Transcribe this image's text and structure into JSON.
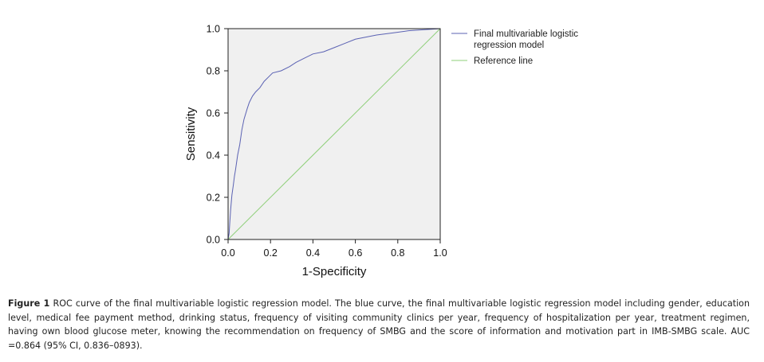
{
  "chart_data": {
    "type": "line",
    "xlabel": "1-Specificity",
    "ylabel": "Sensitivity",
    "xlim": [
      0.0,
      1.0
    ],
    "ylim": [
      0.0,
      1.0
    ],
    "x_ticks": [
      "0.0",
      "0.2",
      "0.4",
      "0.6",
      "0.8",
      "1.0"
    ],
    "y_ticks": [
      "0.0",
      "0.2",
      "0.4",
      "0.6",
      "0.8",
      "1.0"
    ],
    "grid": false,
    "plot_background": "#f0f0f0",
    "legend_position": "right",
    "series": [
      {
        "name": "Final multivariable logistic regression model",
        "color": "#5b62b3",
        "points": [
          [
            0.0,
            0.0
          ],
          [
            0.005,
            0.03
          ],
          [
            0.008,
            0.08
          ],
          [
            0.012,
            0.14
          ],
          [
            0.018,
            0.21
          ],
          [
            0.025,
            0.26
          ],
          [
            0.03,
            0.3
          ],
          [
            0.035,
            0.33
          ],
          [
            0.045,
            0.4
          ],
          [
            0.055,
            0.45
          ],
          [
            0.065,
            0.52
          ],
          [
            0.075,
            0.57
          ],
          [
            0.09,
            0.62
          ],
          [
            0.1,
            0.65
          ],
          [
            0.115,
            0.68
          ],
          [
            0.13,
            0.7
          ],
          [
            0.15,
            0.72
          ],
          [
            0.17,
            0.75
          ],
          [
            0.19,
            0.77
          ],
          [
            0.21,
            0.79
          ],
          [
            0.25,
            0.8
          ],
          [
            0.29,
            0.82
          ],
          [
            0.32,
            0.84
          ],
          [
            0.36,
            0.86
          ],
          [
            0.4,
            0.88
          ],
          [
            0.45,
            0.89
          ],
          [
            0.5,
            0.91
          ],
          [
            0.55,
            0.93
          ],
          [
            0.6,
            0.95
          ],
          [
            0.65,
            0.96
          ],
          [
            0.7,
            0.97
          ],
          [
            0.78,
            0.98
          ],
          [
            0.85,
            0.99
          ],
          [
            0.92,
            0.995
          ],
          [
            1.0,
            1.0
          ]
        ]
      },
      {
        "name": "Reference line",
        "color": "#8fcf7a",
        "points": [
          [
            0.0,
            0.0
          ],
          [
            1.0,
            1.0
          ]
        ]
      }
    ]
  },
  "legend": {
    "model_line1": "Final multivariable logistic",
    "model_line2": "regression model",
    "reference": "Reference line"
  },
  "caption": {
    "label": "Figure 1",
    "text": " ROC curve of the final multivariable logistic regression model. The blue curve, the final multivariable logistic regression model including gender, education level, medical fee payment method, drinking status, frequency of visiting community clinics per year, frequency of hospitalization per year, treatment regimen, having own blood glucose meter, knowing the recommendation on frequency of SMBG and the score of information and motivation part in IMB-SMBG scale. AUC =0.864 (95% CI, 0.836–0893)."
  }
}
